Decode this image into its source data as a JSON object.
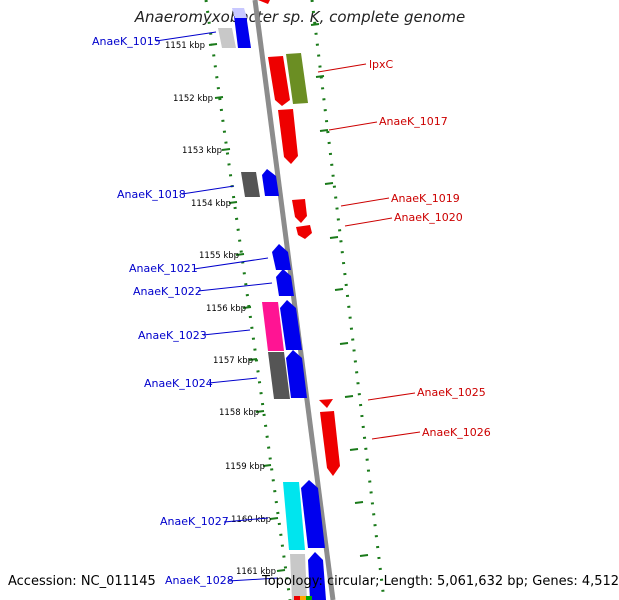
{
  "title": "Anaeromyxobacter sp. K, complete genome",
  "footer": {
    "accession": "Accession: NC_011145",
    "topology": "Topology: circular; Length: 5,061,632 bp; Genes: 4,512"
  },
  "colors": {
    "backbone": "#8c8c8c",
    "tick_ring": "#1a7a1a",
    "forward_label": "#0000cc",
    "reverse_label": "#cc0000"
  },
  "kbp_ticks": [
    {
      "label": "1151 kbp"
    },
    {
      "label": "1152 kbp"
    },
    {
      "label": "1153 kbp"
    },
    {
      "label": "1154 kbp"
    },
    {
      "label": "1155 kbp"
    },
    {
      "label": "1156 kbp"
    },
    {
      "label": "1157 kbp"
    },
    {
      "label": "1158 kbp"
    },
    {
      "label": "1159 kbp"
    },
    {
      "label": "1160 kbp"
    },
    {
      "label": "1161 kbp"
    }
  ],
  "gene_labels_left": [
    "AnaeK_1015",
    "AnaeK_1018",
    "AnaeK_1021",
    "AnaeK_1022",
    "AnaeK_1023",
    "AnaeK_1024",
    "AnaeK_1027",
    "AnaeK_1028"
  ],
  "gene_labels_right": [
    "lpxC",
    "AnaeK_1017",
    "AnaeK_1019",
    "AnaeK_1020",
    "AnaeK_1025",
    "AnaeK_1026"
  ],
  "gene_colors": {
    "forward": "#0000ee",
    "reverse": "#ee0000",
    "cog_gray": "#555555",
    "cog_lightgray": "#c8c8c8",
    "cog_olive": "#6b8e23",
    "cog_pink": "#ff1493",
    "cog_cyan": "#00e5ee"
  }
}
